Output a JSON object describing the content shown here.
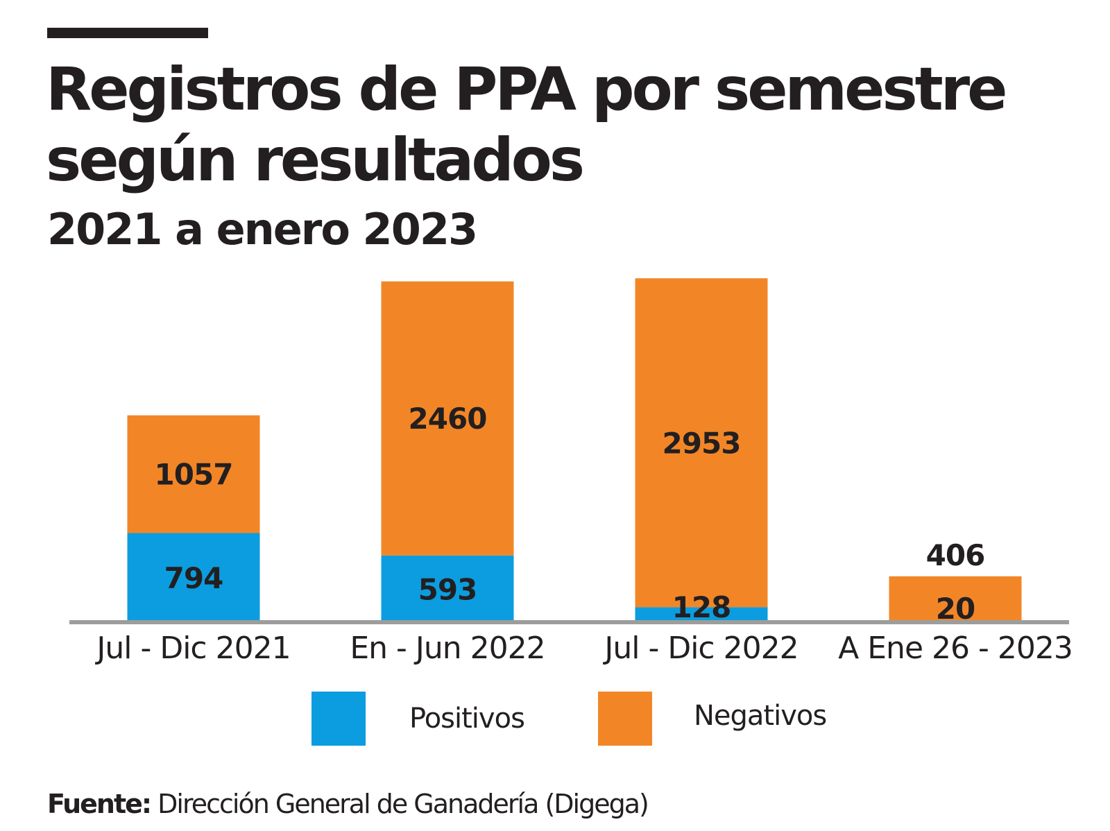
{
  "title": "Registros de PPA por semestre\nsegún resultados",
  "subtitle": "2021 a enero 2023",
  "source": {
    "label": "Fuente:",
    "text": " Dirección General de Ganadería (Digega)"
  },
  "chart_data": {
    "type": "bar",
    "stacked": true,
    "categories": [
      "Jul - Dic 2021",
      "En - Jun 2022",
      "Jul - Dic 2022",
      "A Ene 26 - 2023"
    ],
    "series": [
      {
        "name": "Positivos",
        "color": "#0b9ddf",
        "values": [
          794,
          593,
          128,
          0
        ]
      },
      {
        "name": "Negativos",
        "color": "#f28627",
        "values": [
          1057,
          2460,
          2953,
          406
        ]
      }
    ],
    "data_labels": [
      [
        "794",
        "593",
        "128",
        ""
      ],
      [
        "1057",
        "2460",
        "2953",
        "406"
      ]
    ],
    "annotations": [
      {
        "category": "A Ene 26 - 2023",
        "text": "20"
      }
    ],
    "ylim": [
      0,
      3200
    ],
    "grid": false,
    "legend_position": "bottom-center",
    "baseline_color": "#9d9d9c"
  }
}
